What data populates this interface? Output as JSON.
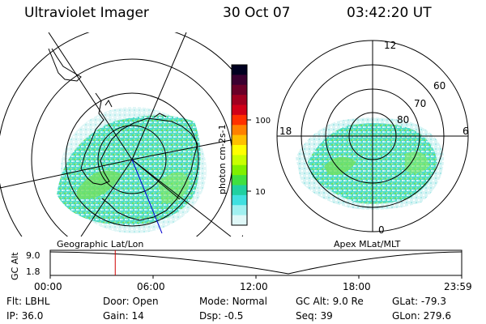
{
  "header": {
    "title": "Ultraviolet Imager",
    "date": "30 Oct 07",
    "time": "03:42:20 UT"
  },
  "colorbar": {
    "label": "photon cm-2s-1",
    "ticks": [
      "100",
      "10"
    ],
    "colors": [
      "#000020",
      "#3a0030",
      "#6a0028",
      "#a00020",
      "#d00018",
      "#ff3000",
      "#ff8000",
      "#ffc000",
      "#ffff00",
      "#c8ff00",
      "#80f000",
      "#40e040",
      "#20d0a0",
      "#40e0e0",
      "#a0f0f0",
      "#e0f8f8"
    ]
  },
  "left_map": {
    "label": "Geographic Lat/Lon"
  },
  "right_map": {
    "label": "Apex MLat/MLT",
    "mlt_labels": [
      "12",
      "18",
      "6",
      "0"
    ],
    "lat_labels": [
      "60",
      "70",
      "80"
    ]
  },
  "timeline": {
    "axis_label": "GC Alt",
    "y_ticks": [
      "9.0",
      "1.8"
    ],
    "x_ticks": [
      "00:00",
      "06:00",
      "12:00",
      "18:00",
      "23:59"
    ],
    "current_time_fraction": 0.158
  },
  "info": {
    "row1": [
      {
        "label": "Flt:",
        "value": "LBHL"
      },
      {
        "label": "Door:",
        "value": "Open"
      },
      {
        "label": "Mode:",
        "value": "Normal"
      },
      {
        "label": "GC Alt:",
        "value": "9.0 Re"
      },
      {
        "label": "GLat:",
        "value": "-79.3"
      }
    ],
    "row2": [
      {
        "label": "IP:",
        "value": "36.0"
      },
      {
        "label": "Gain:",
        "value": "14"
      },
      {
        "label": "Dsp:",
        "value": "-0.5"
      },
      {
        "label": "Seq:",
        "value": "39"
      },
      {
        "label": "GLon:",
        "value": "279.6"
      }
    ]
  }
}
